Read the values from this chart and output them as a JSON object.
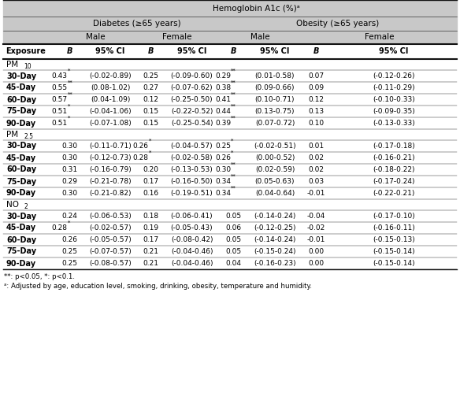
{
  "title": "Hemoglobin A1c (%)ᵃ",
  "dm_label": "Diabetes (≥65 years)",
  "ob_label": "Obesity (≥65 years)",
  "sections": [
    {
      "name_main": "PM",
      "name_sub": "10",
      "rows": [
        {
          "day": "30-Day",
          "d_m_b": "0.43",
          "d_m_sup": "*",
          "d_m_ci": "(-0.02-0.89)",
          "d_f_b": "0.25",
          "d_f_sup": "",
          "d_f_ci": "(-0.09-0.60)",
          "o_m_b": "0.29",
          "o_m_sup": "**",
          "o_m_ci": "(0.01-0.58)",
          "o_f_b": "0.07",
          "o_f_sup": "",
          "o_f_ci": "(-0.12-0.26)"
        },
        {
          "day": "45-Day",
          "d_m_b": "0.55",
          "d_m_sup": "**",
          "d_m_ci": "(0.08-1.02)",
          "d_f_b": "0.27",
          "d_f_sup": "",
          "d_f_ci": "(-0.07-0.62)",
          "o_m_b": "0.38",
          "o_m_sup": "**",
          "o_m_ci": "(0.09-0.66)",
          "o_f_b": "0.09",
          "o_f_sup": "",
          "o_f_ci": "(-0.11-0.29)"
        },
        {
          "day": "60-Day",
          "d_m_b": "0.57",
          "d_m_sup": "**",
          "d_m_ci": "(0.04-1.09)",
          "d_f_b": "0.12",
          "d_f_sup": "",
          "d_f_ci": "(-0.25-0.50)",
          "o_m_b": "0.41",
          "o_m_sup": "**",
          "o_m_ci": "(0.10-0.71)",
          "o_f_b": "0.12",
          "o_f_sup": "",
          "o_f_ci": "(-0.10-0.33)"
        },
        {
          "day": "75-Day",
          "d_m_b": "0.51",
          "d_m_sup": "*",
          "d_m_ci": "(-0.04-1.06)",
          "d_f_b": "0.15",
          "d_f_sup": "",
          "d_f_ci": "(-0.22-0.52)",
          "o_m_b": "0.44",
          "o_m_sup": "**",
          "o_m_ci": "(0.13-0.75)",
          "o_f_b": "0.13",
          "o_f_sup": "",
          "o_f_ci": "(-0.09-0.35)"
        },
        {
          "day": "90-Day",
          "d_m_b": "0.51",
          "d_m_sup": "*",
          "d_m_ci": "(-0.07-1.08)",
          "d_f_b": "0.15",
          "d_f_sup": "",
          "d_f_ci": "(-0.25-0.54)",
          "o_m_b": "0.39",
          "o_m_sup": "**",
          "o_m_ci": "(0.07-0.72)",
          "o_f_b": "0.10",
          "o_f_sup": "",
          "o_f_ci": "(-0.13-0.33)"
        }
      ]
    },
    {
      "name_main": "PM",
      "name_sub": "2.5",
      "rows": [
        {
          "day": "30-Day",
          "d_m_b": "0.30",
          "d_m_sup": "",
          "d_m_ci": "(-0.11-0.71)",
          "d_f_b": "0.26",
          "d_f_sup": "*",
          "d_f_ci": "(-0.04-0.57)",
          "o_m_b": "0.25",
          "o_m_sup": "*",
          "o_m_ci": "(-0.02-0.51)",
          "o_f_b": "0.01",
          "o_f_sup": "",
          "o_f_ci": "(-0.17-0.18)"
        },
        {
          "day": "45-Day",
          "d_m_b": "0.30",
          "d_m_sup": "",
          "d_m_ci": "(-0.12-0.73)",
          "d_f_b": "0.28",
          "d_f_sup": "*",
          "d_f_ci": "(-0.02-0.58)",
          "o_m_b": "0.26",
          "o_m_sup": "*",
          "o_m_ci": "(0.00-0.52)",
          "o_f_b": "0.02",
          "o_f_sup": "",
          "o_f_ci": "(-0.16-0.21)"
        },
        {
          "day": "60-Day",
          "d_m_b": "0.31",
          "d_m_sup": "",
          "d_m_ci": "(-0.16-0.79)",
          "d_f_b": "0.20",
          "d_f_sup": "",
          "d_f_ci": "(-0.13-0.53)",
          "o_m_b": "0.30",
          "o_m_sup": "**",
          "o_m_ci": "(0.02-0.59)",
          "o_f_b": "0.02",
          "o_f_sup": "",
          "o_f_ci": "(-0.18-0.22)"
        },
        {
          "day": "75-Day",
          "d_m_b": "0.29",
          "d_m_sup": "",
          "d_m_ci": "(-0.21-0.78)",
          "d_f_b": "0.17",
          "d_f_sup": "",
          "d_f_ci": "(-0.16-0.50)",
          "o_m_b": "0.34",
          "o_m_sup": "**",
          "o_m_ci": "(0.05-0.63)",
          "o_f_b": "0.03",
          "o_f_sup": "",
          "o_f_ci": "(-0.17-0.24)"
        },
        {
          "day": "90-Day",
          "d_m_b": "0.30",
          "d_m_sup": "",
          "d_m_ci": "(-0.21-0.82)",
          "d_f_b": "0.16",
          "d_f_sup": "",
          "d_f_ci": "(-0.19-0.51)",
          "o_m_b": "0.34",
          "o_m_sup": "**",
          "o_m_ci": "(0.04-0.64)",
          "o_f_b": "-0.01",
          "o_f_sup": "",
          "o_f_ci": "(-0.22-0.21)"
        }
      ]
    },
    {
      "name_main": "NO",
      "name_sub": "2",
      "rows": [
        {
          "day": "30-Day",
          "d_m_b": "0.24",
          "d_m_sup": "",
          "d_m_ci": "(-0.06-0.53)",
          "d_f_b": "0.18",
          "d_f_sup": "",
          "d_f_ci": "(-0.06-0.41)",
          "o_m_b": "0.05",
          "o_m_sup": "",
          "o_m_ci": "(-0.14-0.24)",
          "o_f_b": "-0.04",
          "o_f_sup": "",
          "o_f_ci": "(-0.17-0.10)"
        },
        {
          "day": "45-Day",
          "d_m_b": "0.28",
          "d_m_sup": "*",
          "d_m_ci": "(-0.02-0.57)",
          "d_f_b": "0.19",
          "d_f_sup": "",
          "d_f_ci": "(-0.05-0.43)",
          "o_m_b": "0.06",
          "o_m_sup": "",
          "o_m_ci": "(-0.12-0.25)",
          "o_f_b": "-0.02",
          "o_f_sup": "",
          "o_f_ci": "(-0.16-0.11)"
        },
        {
          "day": "60-Day",
          "d_m_b": "0.26",
          "d_m_sup": "",
          "d_m_ci": "(-0.05-0.57)",
          "d_f_b": "0.17",
          "d_f_sup": "",
          "d_f_ci": "(-0.08-0.42)",
          "o_m_b": "0.05",
          "o_m_sup": "",
          "o_m_ci": "(-0.14-0.24)",
          "o_f_b": "-0.01",
          "o_f_sup": "",
          "o_f_ci": "(-0.15-0.13)"
        },
        {
          "day": "75-Day",
          "d_m_b": "0.25",
          "d_m_sup": "",
          "d_m_ci": "(-0.07-0.57)",
          "d_f_b": "0.21",
          "d_f_sup": "",
          "d_f_ci": "(-0.04-0.46)",
          "o_m_b": "0.05",
          "o_m_sup": "",
          "o_m_ci": "(-0.15-0.24)",
          "o_f_b": "0.00",
          "o_f_sup": "",
          "o_f_ci": "(-0.15-0.14)"
        },
        {
          "day": "90-Day",
          "d_m_b": "0.25",
          "d_m_sup": "",
          "d_m_ci": "(-0.08-0.57)",
          "d_f_b": "0.21",
          "d_f_sup": "",
          "d_f_ci": "(-0.04-0.46)",
          "o_m_b": "0.04",
          "o_m_sup": "",
          "o_m_ci": "(-0.16-0.23)",
          "o_f_b": "0.00",
          "o_f_sup": "",
          "o_f_ci": "(-0.15-0.14)"
        }
      ]
    }
  ],
  "footnote1": "**: p<0.05, *: p<0.1.",
  "footnote2": "ᵃ: Adjusted by age, education level, smoking, drinking, obesity, temperature and humidity.",
  "bg_header": "#c8c8c8",
  "bg_white": "#ffffff",
  "line_color": "#333333"
}
